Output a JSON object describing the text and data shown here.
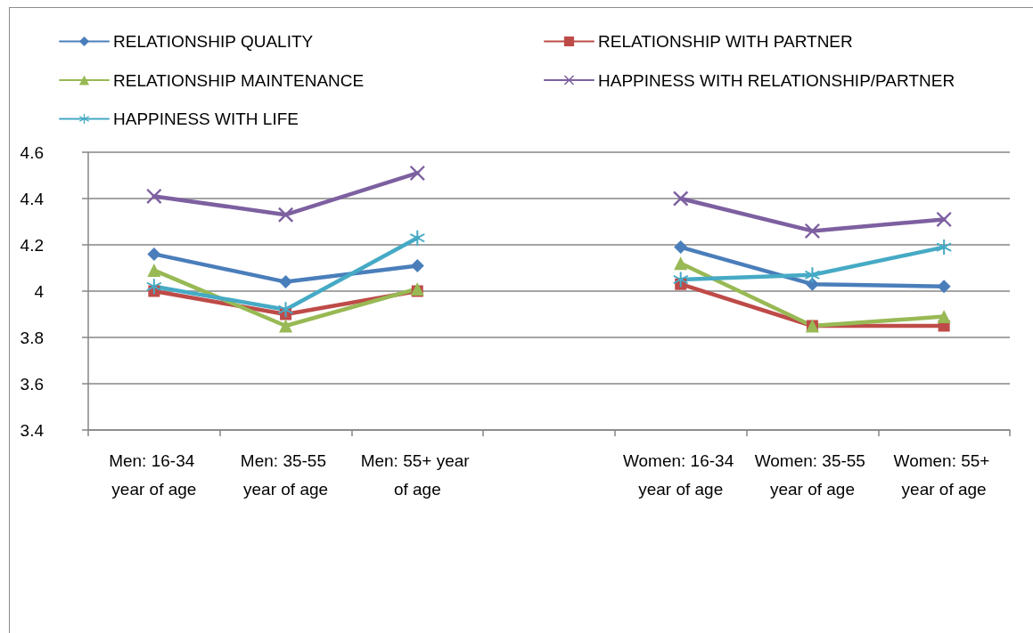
{
  "chart_data": {
    "type": "line",
    "categories": [
      "Men: 16-34 year of age",
      "Men: 35-55 year of age",
      "Men: 55+ year of age",
      null,
      "Women: 16-34 year of age",
      "Women: 35-55 year of age",
      "Women: 55+ year of age"
    ],
    "series": [
      {
        "name": "RELATIONSHIP QUALITY",
        "color": "#4a7ebb",
        "marker": "diamond",
        "values": [
          4.16,
          4.04,
          4.11,
          null,
          4.19,
          4.03,
          4.02
        ]
      },
      {
        "name": "RELATIONSHIP WITH PARTNER",
        "color": "#be4b48",
        "marker": "square",
        "values": [
          4.0,
          3.9,
          4.0,
          null,
          4.03,
          3.85,
          3.85
        ]
      },
      {
        "name": "RELATIONSHIP MAINTENANCE",
        "color": "#98b954",
        "marker": "triangle",
        "values": [
          4.09,
          3.85,
          4.01,
          null,
          4.12,
          3.85,
          3.89
        ]
      },
      {
        "name": "HAPPINESS WITH RELATIONSHIP/PARTNER",
        "color": "#7d60a0",
        "marker": "cross",
        "values": [
          4.41,
          4.33,
          4.51,
          null,
          4.4,
          4.26,
          4.31
        ]
      },
      {
        "name": "HAPPINESS WITH LIFE",
        "color": "#46aac5",
        "marker": "star",
        "values": [
          4.02,
          3.92,
          4.23,
          null,
          4.05,
          4.07,
          4.19
        ]
      }
    ],
    "ylim": [
      3.4,
      4.6
    ],
    "yticks": [
      3.4,
      3.6,
      3.8,
      4,
      4.2,
      4.4,
      4.6
    ],
    "grid": "y",
    "legend": "top",
    "line_style": "solid"
  }
}
